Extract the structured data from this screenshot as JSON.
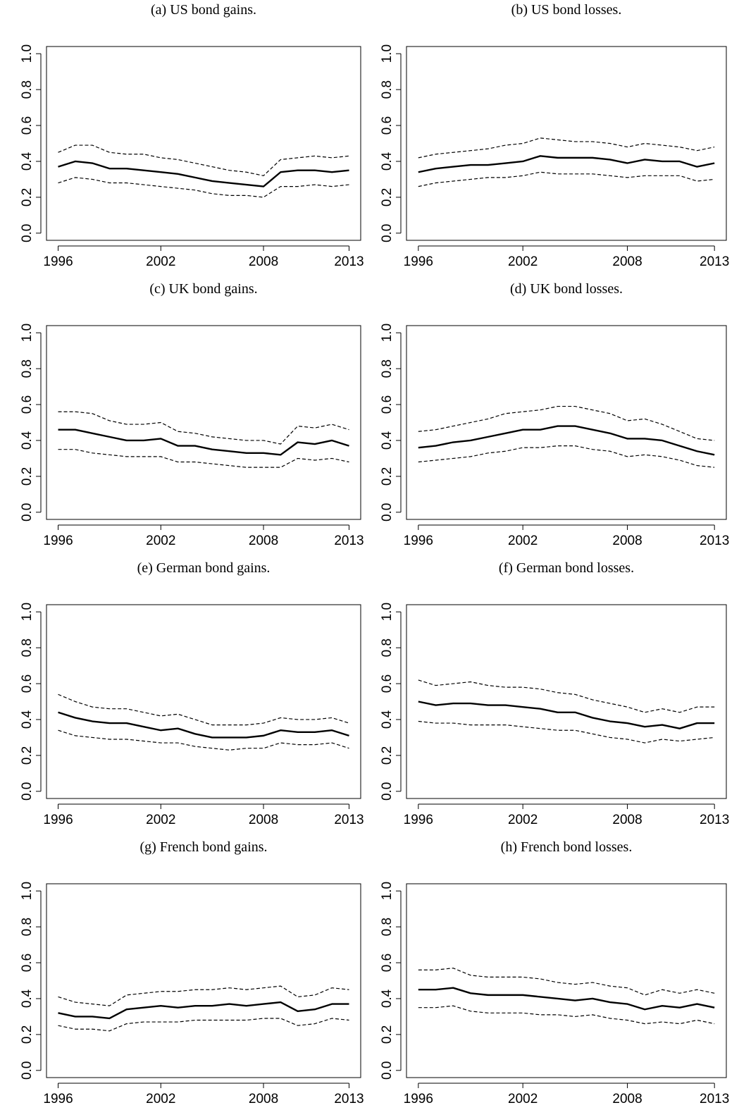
{
  "chart_data": [
    {
      "type": "line",
      "title": "(a) US bond gains.",
      "x": [
        1996,
        1997,
        1998,
        1999,
        2000,
        2001,
        2002,
        2003,
        2004,
        2005,
        2006,
        2007,
        2008,
        2009,
        2010,
        2011,
        2012,
        2013
      ],
      "xlim": [
        1995.32,
        2013.68
      ],
      "xticks": [
        1996,
        2002,
        2008,
        2013
      ],
      "ylim": [
        -0.04,
        1.04
      ],
      "yticks": [
        {
          "value": 0,
          "label": "0.0"
        },
        0.2,
        0.4,
        0.6,
        0.8,
        {
          "value": 1,
          "label": "1.0"
        }
      ],
      "series": [
        {
          "color": "#000000",
          "dashed": false,
          "values": [
            0.37,
            0.4,
            0.39,
            0.36,
            0.36,
            0.35,
            0.34,
            0.33,
            0.31,
            0.29,
            0.28,
            0.27,
            0.26,
            0.34,
            0.35,
            0.35,
            0.34,
            0.35
          ]
        },
        {
          "color": "#000000",
          "dashed": true,
          "values": [
            0.45,
            0.49,
            0.49,
            0.45,
            0.44,
            0.44,
            0.42,
            0.41,
            0.39,
            0.37,
            0.35,
            0.34,
            0.32,
            0.41,
            0.42,
            0.43,
            0.42,
            0.43
          ]
        },
        {
          "color": "#000000",
          "dashed": true,
          "values": [
            0.28,
            0.31,
            0.3,
            0.28,
            0.28,
            0.27,
            0.26,
            0.25,
            0.24,
            0.22,
            0.21,
            0.21,
            0.2,
            0.26,
            0.26,
            0.27,
            0.26,
            0.27
          ]
        }
      ]
    },
    {
      "type": "line",
      "title": "(b) US bond losses.",
      "x": [
        1996,
        1997,
        1998,
        1999,
        2000,
        2001,
        2002,
        2003,
        2004,
        2005,
        2006,
        2007,
        2008,
        2009,
        2010,
        2011,
        2012,
        2013
      ],
      "xlim": [
        1995.32,
        2013.68
      ],
      "xticks": [
        1996,
        2002,
        2008,
        2013
      ],
      "ylim": [
        -0.04,
        1.04
      ],
      "yticks": [
        {
          "value": 0,
          "label": "0.0"
        },
        0.2,
        0.4,
        0.6,
        0.8,
        {
          "value": 1,
          "label": "1.0"
        }
      ],
      "series": [
        {
          "color": "#000000",
          "dashed": false,
          "values": [
            0.34,
            0.36,
            0.37,
            0.38,
            0.38,
            0.39,
            0.4,
            0.43,
            0.42,
            0.42,
            0.42,
            0.41,
            0.39,
            0.41,
            0.4,
            0.4,
            0.37,
            0.39
          ]
        },
        {
          "color": "#000000",
          "dashed": true,
          "values": [
            0.42,
            0.44,
            0.45,
            0.46,
            0.47,
            0.49,
            0.5,
            0.53,
            0.52,
            0.51,
            0.51,
            0.5,
            0.48,
            0.5,
            0.49,
            0.48,
            0.46,
            0.48
          ]
        },
        {
          "color": "#000000",
          "dashed": true,
          "values": [
            0.26,
            0.28,
            0.29,
            0.3,
            0.31,
            0.31,
            0.32,
            0.34,
            0.33,
            0.33,
            0.33,
            0.32,
            0.31,
            0.32,
            0.32,
            0.32,
            0.29,
            0.3
          ]
        }
      ]
    },
    {
      "type": "line",
      "title": "(c) UK bond gains.",
      "x": [
        1996,
        1997,
        1998,
        1999,
        2000,
        2001,
        2002,
        2003,
        2004,
        2005,
        2006,
        2007,
        2008,
        2009,
        2010,
        2011,
        2012,
        2013
      ],
      "xlim": [
        1995.32,
        2013.68
      ],
      "xticks": [
        1996,
        2002,
        2008,
        2013
      ],
      "ylim": [
        -0.04,
        1.04
      ],
      "yticks": [
        {
          "value": 0,
          "label": "0.0"
        },
        0.2,
        0.4,
        0.6,
        0.8,
        {
          "value": 1,
          "label": "1.0"
        }
      ],
      "series": [
        {
          "color": "#000000",
          "dashed": false,
          "values": [
            0.46,
            0.46,
            0.44,
            0.42,
            0.4,
            0.4,
            0.41,
            0.37,
            0.37,
            0.35,
            0.34,
            0.33,
            0.33,
            0.32,
            0.39,
            0.38,
            0.4,
            0.37
          ]
        },
        {
          "color": "#000000",
          "dashed": true,
          "values": [
            0.56,
            0.56,
            0.55,
            0.51,
            0.49,
            0.49,
            0.5,
            0.45,
            0.44,
            0.42,
            0.41,
            0.4,
            0.4,
            0.38,
            0.48,
            0.47,
            0.49,
            0.46
          ]
        },
        {
          "color": "#000000",
          "dashed": true,
          "values": [
            0.35,
            0.35,
            0.33,
            0.32,
            0.31,
            0.31,
            0.31,
            0.28,
            0.28,
            0.27,
            0.26,
            0.25,
            0.25,
            0.25,
            0.3,
            0.29,
            0.3,
            0.28
          ]
        }
      ]
    },
    {
      "type": "line",
      "title": "(d) UK bond losses.",
      "x": [
        1996,
        1997,
        1998,
        1999,
        2000,
        2001,
        2002,
        2003,
        2004,
        2005,
        2006,
        2007,
        2008,
        2009,
        2010,
        2011,
        2012,
        2013
      ],
      "xlim": [
        1995.32,
        2013.68
      ],
      "xticks": [
        1996,
        2002,
        2008,
        2013
      ],
      "ylim": [
        -0.04,
        1.04
      ],
      "yticks": [
        {
          "value": 0,
          "label": "0.0"
        },
        0.2,
        0.4,
        0.6,
        0.8,
        {
          "value": 1,
          "label": "1.0"
        }
      ],
      "series": [
        {
          "color": "#000000",
          "dashed": false,
          "values": [
            0.36,
            0.37,
            0.39,
            0.4,
            0.42,
            0.44,
            0.46,
            0.46,
            0.48,
            0.48,
            0.46,
            0.44,
            0.41,
            0.41,
            0.4,
            0.37,
            0.34,
            0.32
          ]
        },
        {
          "color": "#000000",
          "dashed": true,
          "values": [
            0.45,
            0.46,
            0.48,
            0.5,
            0.52,
            0.55,
            0.56,
            0.57,
            0.59,
            0.59,
            0.57,
            0.55,
            0.51,
            0.52,
            0.49,
            0.45,
            0.41,
            0.4
          ]
        },
        {
          "color": "#000000",
          "dashed": true,
          "values": [
            0.28,
            0.29,
            0.3,
            0.31,
            0.33,
            0.34,
            0.36,
            0.36,
            0.37,
            0.37,
            0.35,
            0.34,
            0.31,
            0.32,
            0.31,
            0.29,
            0.26,
            0.25
          ]
        }
      ]
    },
    {
      "type": "line",
      "title": "(e) German bond gains.",
      "x": [
        1996,
        1997,
        1998,
        1999,
        2000,
        2001,
        2002,
        2003,
        2004,
        2005,
        2006,
        2007,
        2008,
        2009,
        2010,
        2011,
        2012,
        2013
      ],
      "xlim": [
        1995.32,
        2013.68
      ],
      "xticks": [
        1996,
        2002,
        2008,
        2013
      ],
      "ylim": [
        -0.04,
        1.04
      ],
      "yticks": [
        {
          "value": 0,
          "label": "0.0"
        },
        0.2,
        0.4,
        0.6,
        0.8,
        {
          "value": 1,
          "label": "1.0"
        }
      ],
      "series": [
        {
          "color": "#000000",
          "dashed": false,
          "values": [
            0.44,
            0.41,
            0.39,
            0.38,
            0.38,
            0.36,
            0.34,
            0.35,
            0.32,
            0.3,
            0.3,
            0.3,
            0.31,
            0.34,
            0.33,
            0.33,
            0.34,
            0.31
          ]
        },
        {
          "color": "#000000",
          "dashed": true,
          "values": [
            0.54,
            0.5,
            0.47,
            0.46,
            0.46,
            0.44,
            0.42,
            0.43,
            0.4,
            0.37,
            0.37,
            0.37,
            0.38,
            0.41,
            0.4,
            0.4,
            0.41,
            0.38
          ]
        },
        {
          "color": "#000000",
          "dashed": true,
          "values": [
            0.34,
            0.31,
            0.3,
            0.29,
            0.29,
            0.28,
            0.27,
            0.27,
            0.25,
            0.24,
            0.23,
            0.24,
            0.24,
            0.27,
            0.26,
            0.26,
            0.27,
            0.24
          ]
        }
      ]
    },
    {
      "type": "line",
      "title": "(f) German bond losses.",
      "x": [
        1996,
        1997,
        1998,
        1999,
        2000,
        2001,
        2002,
        2003,
        2004,
        2005,
        2006,
        2007,
        2008,
        2009,
        2010,
        2011,
        2012,
        2013
      ],
      "xlim": [
        1995.32,
        2013.68
      ],
      "xticks": [
        1996,
        2002,
        2008,
        2013
      ],
      "ylim": [
        -0.04,
        1.04
      ],
      "yticks": [
        {
          "value": 0,
          "label": "0.0"
        },
        0.2,
        0.4,
        0.6,
        0.8,
        {
          "value": 1,
          "label": "1.0"
        }
      ],
      "series": [
        {
          "color": "#000000",
          "dashed": false,
          "values": [
            0.5,
            0.48,
            0.49,
            0.49,
            0.48,
            0.48,
            0.47,
            0.46,
            0.44,
            0.44,
            0.41,
            0.39,
            0.38,
            0.36,
            0.37,
            0.35,
            0.38,
            0.38
          ]
        },
        {
          "color": "#000000",
          "dashed": true,
          "values": [
            0.62,
            0.59,
            0.6,
            0.61,
            0.59,
            0.58,
            0.58,
            0.57,
            0.55,
            0.54,
            0.51,
            0.49,
            0.47,
            0.44,
            0.46,
            0.44,
            0.47,
            0.47
          ]
        },
        {
          "color": "#000000",
          "dashed": true,
          "values": [
            0.39,
            0.38,
            0.38,
            0.37,
            0.37,
            0.37,
            0.36,
            0.35,
            0.34,
            0.34,
            0.32,
            0.3,
            0.29,
            0.27,
            0.29,
            0.28,
            0.29,
            0.3
          ]
        }
      ]
    },
    {
      "type": "line",
      "title": "(g) French bond gains.",
      "x": [
        1996,
        1997,
        1998,
        1999,
        2000,
        2001,
        2002,
        2003,
        2004,
        2005,
        2006,
        2007,
        2008,
        2009,
        2010,
        2011,
        2012,
        2013
      ],
      "xlim": [
        1995.32,
        2013.68
      ],
      "xticks": [
        1996,
        2002,
        2008,
        2013
      ],
      "ylim": [
        -0.04,
        1.04
      ],
      "yticks": [
        {
          "value": 0,
          "label": "0.0"
        },
        0.2,
        0.4,
        0.6,
        0.8,
        {
          "value": 1,
          "label": "1.0"
        }
      ],
      "series": [
        {
          "color": "#000000",
          "dashed": false,
          "values": [
            0.32,
            0.3,
            0.3,
            0.29,
            0.34,
            0.35,
            0.36,
            0.35,
            0.36,
            0.36,
            0.37,
            0.36,
            0.37,
            0.38,
            0.33,
            0.34,
            0.37,
            0.37
          ]
        },
        {
          "color": "#000000",
          "dashed": true,
          "values": [
            0.41,
            0.38,
            0.37,
            0.36,
            0.42,
            0.43,
            0.44,
            0.44,
            0.45,
            0.45,
            0.46,
            0.45,
            0.46,
            0.47,
            0.41,
            0.42,
            0.46,
            0.45
          ]
        },
        {
          "color": "#000000",
          "dashed": true,
          "values": [
            0.25,
            0.23,
            0.23,
            0.22,
            0.26,
            0.27,
            0.27,
            0.27,
            0.28,
            0.28,
            0.28,
            0.28,
            0.29,
            0.29,
            0.25,
            0.26,
            0.29,
            0.28
          ]
        }
      ]
    },
    {
      "type": "line",
      "title": "(h) French bond losses.",
      "x": [
        1996,
        1997,
        1998,
        1999,
        2000,
        2001,
        2002,
        2003,
        2004,
        2005,
        2006,
        2007,
        2008,
        2009,
        2010,
        2011,
        2012,
        2013
      ],
      "xlim": [
        1995.32,
        2013.68
      ],
      "xticks": [
        1996,
        2002,
        2008,
        2013
      ],
      "ylim": [
        -0.04,
        1.04
      ],
      "yticks": [
        {
          "value": 0,
          "label": "0.0"
        },
        0.2,
        0.4,
        0.6,
        0.8,
        {
          "value": 1,
          "label": "1.0"
        }
      ],
      "series": [
        {
          "color": "#000000",
          "dashed": false,
          "values": [
            0.45,
            0.45,
            0.46,
            0.43,
            0.42,
            0.42,
            0.42,
            0.41,
            0.4,
            0.39,
            0.4,
            0.38,
            0.37,
            0.34,
            0.36,
            0.35,
            0.37,
            0.35
          ]
        },
        {
          "color": "#000000",
          "dashed": true,
          "values": [
            0.56,
            0.56,
            0.57,
            0.53,
            0.52,
            0.52,
            0.52,
            0.51,
            0.49,
            0.48,
            0.49,
            0.47,
            0.46,
            0.42,
            0.45,
            0.43,
            0.45,
            0.43
          ]
        },
        {
          "color": "#000000",
          "dashed": true,
          "values": [
            0.35,
            0.35,
            0.36,
            0.33,
            0.32,
            0.32,
            0.32,
            0.31,
            0.31,
            0.3,
            0.31,
            0.29,
            0.28,
            0.26,
            0.27,
            0.26,
            0.28,
            0.26
          ]
        }
      ]
    }
  ]
}
